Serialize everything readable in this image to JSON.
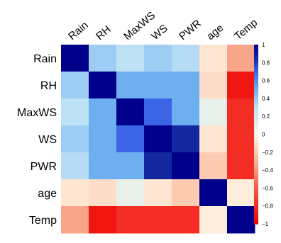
{
  "chart_data": {
    "type": "heatmap",
    "variables": [
      "Rain",
      "RH",
      "MaxWS",
      "WS",
      "PWR",
      "age",
      "Temp"
    ],
    "matrix": [
      [
        1.0,
        0.38,
        0.3,
        0.38,
        0.32,
        -0.08,
        -0.35
      ],
      [
        0.38,
        1.0,
        0.5,
        0.5,
        0.5,
        -0.12,
        -0.9
      ],
      [
        0.3,
        0.5,
        1.0,
        0.7,
        0.5,
        0.1,
        -0.8
      ],
      [
        0.38,
        0.5,
        0.7,
        1.0,
        0.85,
        -0.08,
        -0.8
      ],
      [
        0.32,
        0.5,
        0.5,
        0.85,
        1.0,
        -0.2,
        -0.8
      ],
      [
        -0.08,
        -0.12,
        0.1,
        -0.08,
        -0.2,
        1.0,
        -0.05
      ],
      [
        -0.35,
        -0.9,
        -0.8,
        -0.8,
        -0.8,
        -0.05,
        1.0
      ]
    ],
    "colorbar": {
      "range": [
        -1,
        1
      ],
      "ticks": [
        "1",
        "0.8",
        "0.6",
        "0.4",
        "0.2",
        "0",
        "−0.2",
        "−0.4",
        "−0.6",
        "−0.8",
        "−1"
      ],
      "tick_values": [
        1,
        0.8,
        0.6,
        0.4,
        0.2,
        0,
        -0.2,
        -0.4,
        -0.6,
        -0.8,
        -1
      ],
      "palette": {
        "negative_end": "#EE0000",
        "neutral": "#FFF8E8",
        "positive_end": "#00008B"
      }
    },
    "label_color": "#000000"
  }
}
